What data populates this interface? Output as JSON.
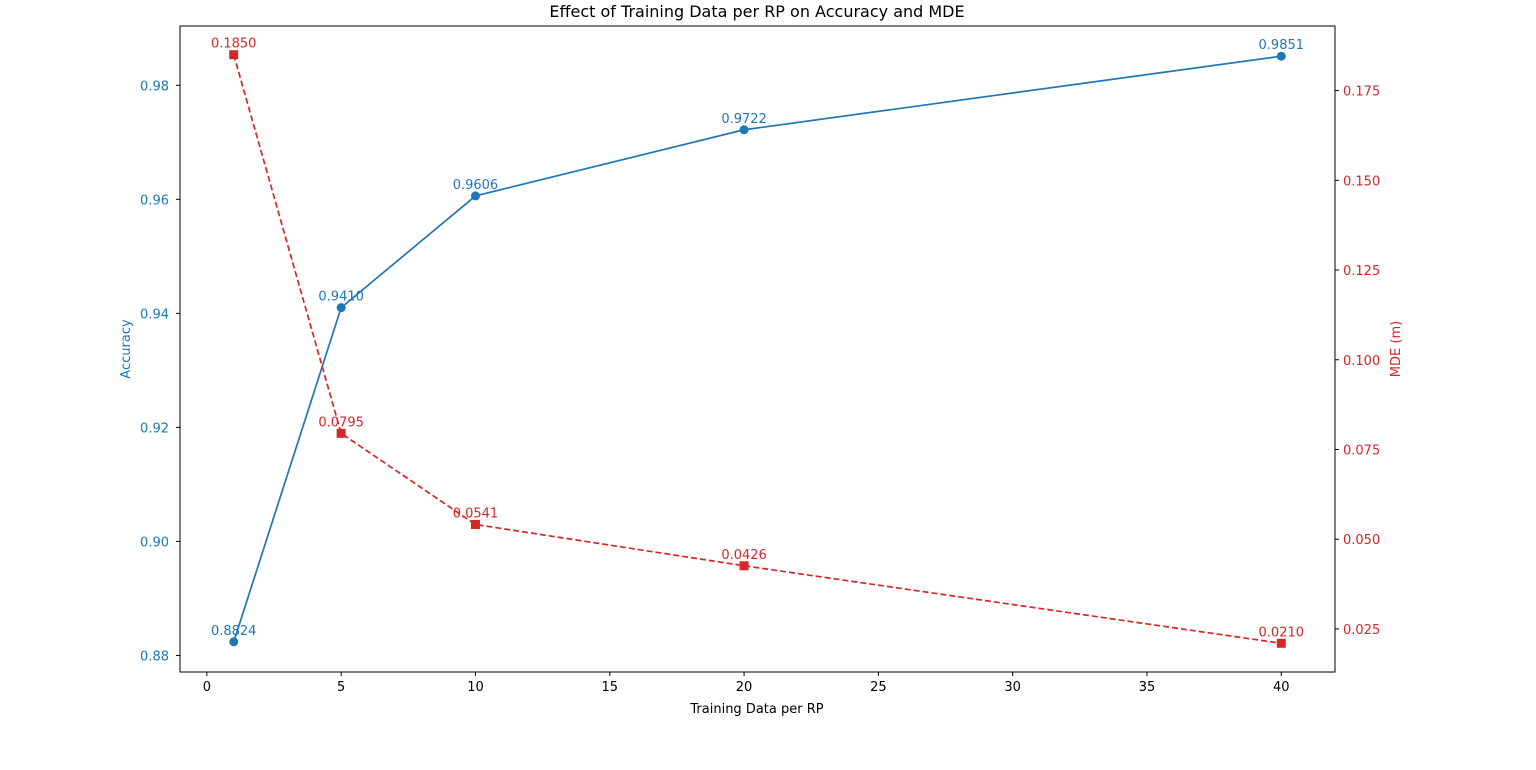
{
  "chart_data": {
    "type": "line",
    "title": "Effect of Training Data per RP on Accuracy and MDE",
    "xlabel": "Training Data per RP",
    "ylabel_left": "Accuracy",
    "ylabel_right": "MDE (m)",
    "x": [
      1,
      5,
      10,
      20,
      40
    ],
    "xlim": [
      -1,
      42
    ],
    "x_ticks": [
      0,
      5,
      10,
      15,
      20,
      25,
      30,
      35,
      40
    ],
    "y_left_lim": [
      0.8771,
      0.9904
    ],
    "y_left_ticks": [
      0.88,
      0.9,
      0.92,
      0.94,
      0.96,
      0.98
    ],
    "y_left_tick_labels": [
      "0.88",
      "0.90",
      "0.92",
      "0.94",
      "0.96",
      "0.98"
    ],
    "y_right_lim": [
      0.013,
      0.193
    ],
    "y_right_ticks": [
      0.025,
      0.05,
      0.075,
      0.1,
      0.125,
      0.15,
      0.175
    ],
    "y_right_tick_labels": [
      "0.025",
      "0.050",
      "0.075",
      "0.100",
      "0.125",
      "0.150",
      "0.175"
    ],
    "grid": false,
    "legend": "none",
    "series": [
      {
        "axis": "left",
        "values": [
          0.8824,
          0.941,
          0.9606,
          0.9722,
          0.9851
        ],
        "labels": [
          "0.8824",
          "0.9410",
          "0.9606",
          "0.9722",
          "0.9851"
        ],
        "color": "#1f77b4",
        "line_style": "solid",
        "marker": "circle"
      },
      {
        "axis": "right",
        "values": [
          0.185,
          0.0795,
          0.0541,
          0.0426,
          0.021
        ],
        "labels": [
          "0.1850",
          "0.0795",
          "0.0541",
          "0.0426",
          "0.0210"
        ],
        "color": "#d62728",
        "line_style": "dashed",
        "marker": "square"
      }
    ]
  }
}
